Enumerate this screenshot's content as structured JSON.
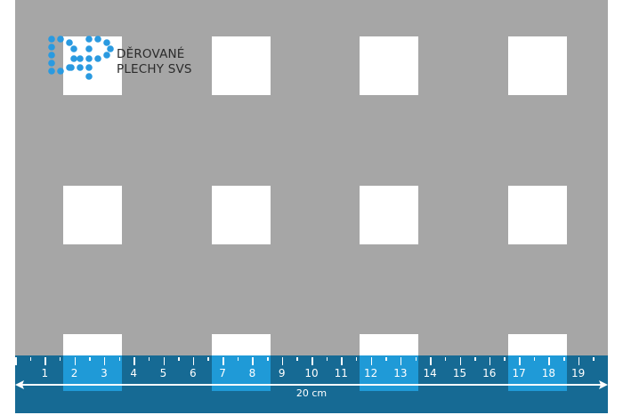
{
  "logo": {
    "line1": "DĚROVANÉ",
    "line2": "PLECHY SVS",
    "monogram": "DP",
    "dot_color": "#2a9ae0"
  },
  "colors": {
    "sheet": "#a6a6a6",
    "hole": "#ffffff",
    "ruler": "#166a94",
    "ruler_highlight": "#1f9ad7"
  },
  "ruler": {
    "labels": [
      "1",
      "2",
      "3",
      "4",
      "5",
      "6",
      "7",
      "8",
      "9",
      "10",
      "11",
      "12",
      "13",
      "14",
      "15",
      "16",
      "17",
      "18",
      "19"
    ],
    "length_label": "20 cm"
  }
}
